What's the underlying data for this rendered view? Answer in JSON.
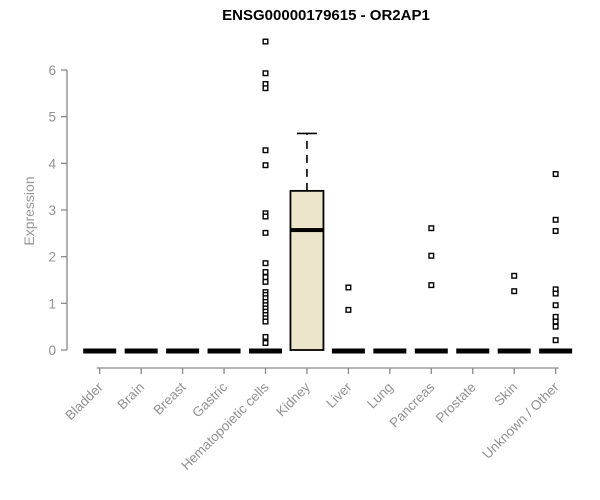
{
  "chart_data": {
    "type": "boxplot",
    "title": "ENSG00000179615 - OR2AP1",
    "ylabel": "Expression",
    "xlabel": "",
    "yticks": [
      0,
      1,
      2,
      3,
      4,
      5,
      6
    ],
    "ylim": [
      -0.2,
      6.8
    ],
    "grid": false,
    "legend": null,
    "categories": [
      "Bladder",
      "Brain",
      "Breast",
      "Gastric",
      "Hematopoietic cells",
      "Kidney",
      "Liver",
      "Lung",
      "Pancreas",
      "Prostate",
      "Skin",
      "Unknown / Other"
    ],
    "boxes": [
      {
        "category": "Bladder",
        "q1": 0,
        "median": 0,
        "q3": 0,
        "whisker_low": 0,
        "whisker_high": 0,
        "collapsed": true
      },
      {
        "category": "Brain",
        "q1": 0,
        "median": 0,
        "q3": 0,
        "whisker_low": 0,
        "whisker_high": 0,
        "collapsed": true
      },
      {
        "category": "Breast",
        "q1": 0,
        "median": 0,
        "q3": 0,
        "whisker_low": 0,
        "whisker_high": 0,
        "collapsed": true
      },
      {
        "category": "Gastric",
        "q1": 0,
        "median": 0,
        "q3": 0,
        "whisker_low": 0,
        "whisker_high": 0,
        "collapsed": true
      },
      {
        "category": "Hematopoietic cells",
        "q1": 0,
        "median": 0,
        "q3": 0,
        "whisker_low": 0,
        "whisker_high": 0,
        "collapsed": true
      },
      {
        "category": "Kidney",
        "q1": 0,
        "median": 2.57,
        "q3": 3.41,
        "whisker_low": 0,
        "whisker_high": 4.64,
        "collapsed": false
      },
      {
        "category": "Liver",
        "q1": 0,
        "median": 0,
        "q3": 0,
        "whisker_low": 0,
        "whisker_high": 0,
        "collapsed": true
      },
      {
        "category": "Lung",
        "q1": 0,
        "median": 0,
        "q3": 0,
        "whisker_low": 0,
        "whisker_high": 0,
        "collapsed": true
      },
      {
        "category": "Pancreas",
        "q1": 0,
        "median": 0,
        "q3": 0,
        "whisker_low": 0,
        "whisker_high": 0,
        "collapsed": true
      },
      {
        "category": "Prostate",
        "q1": 0,
        "median": 0,
        "q3": 0,
        "whisker_low": 0,
        "whisker_high": 0,
        "collapsed": true
      },
      {
        "category": "Skin",
        "q1": 0,
        "median": 0,
        "q3": 0,
        "whisker_low": 0,
        "whisker_high": 0,
        "collapsed": true
      },
      {
        "category": "Unknown / Other",
        "q1": 0,
        "median": 0,
        "q3": 0,
        "whisker_low": 0,
        "whisker_high": 0,
        "collapsed": true
      }
    ],
    "outliers": {
      "Hematopoietic cells": [
        6.61,
        5.93,
        5.7,
        5.61,
        4.28,
        3.96,
        2.93,
        2.86,
        2.51,
        1.86,
        1.67,
        1.56,
        1.46,
        1.24,
        1.18,
        1.11,
        1.03,
        0.96,
        0.89,
        0.82,
        0.75,
        0.68,
        0.61,
        0.28,
        0.15
      ],
      "Liver": [
        1.34,
        0.86
      ],
      "Pancreas": [
        2.61,
        2.02,
        1.39
      ],
      "Skin": [
        1.59,
        1.26
      ],
      "Unknown / Other": [
        3.77,
        2.79,
        2.55,
        1.3,
        1.21,
        0.96,
        0.71,
        0.61,
        0.5,
        0.21
      ]
    },
    "colors": {
      "background": "#FFFFFF",
      "box_fill": "#ECE5CB",
      "box_stroke": "#000000",
      "collapsed_bar": "#000000",
      "median_line": "#000000",
      "whisker": "#000000",
      "outlier_stroke": "#000000",
      "outlier_fill": "#FFFFFF",
      "axis_line": "#898989",
      "tick_label": "#919191",
      "axis_label": "#979797",
      "title_color": "#000000"
    }
  }
}
